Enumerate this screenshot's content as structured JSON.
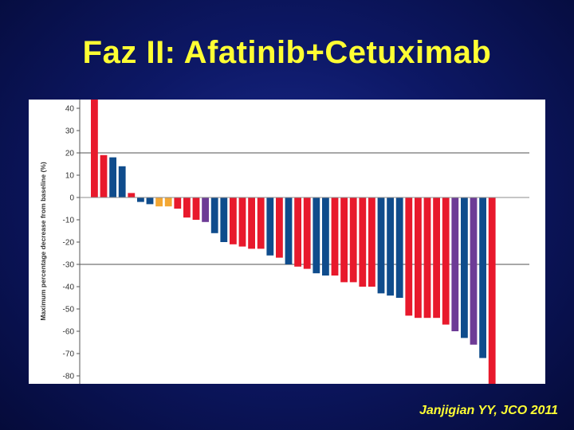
{
  "slide": {
    "title": "Faz II: Afatinib+Cetuximab",
    "citation": "Janjigian YY, JCO 2011"
  },
  "colors": {
    "red": "#e8192c",
    "blue": "#0f4c8c",
    "orange": "#f3a733",
    "purple": "#6d3b96",
    "reference_line": "#8c8c8c"
  },
  "chart_data": {
    "type": "bar",
    "title": "",
    "ylabel": "Maximum percentage decrease from baseline (%)",
    "xlabel": "",
    "ylim": [
      -85,
      45
    ],
    "yticks": [
      40,
      30,
      20,
      10,
      0,
      -10,
      -20,
      -30,
      -40,
      -50,
      -60,
      -70,
      -80
    ],
    "reference_lines": [
      20,
      -30
    ],
    "grid": false,
    "legend": "none",
    "series": [
      {
        "values": [
          45,
          19,
          18,
          14,
          2,
          -2,
          -3,
          -4,
          -4,
          -5,
          -9,
          -10,
          -11,
          -16,
          -20,
          -21,
          -22,
          -23,
          -23,
          -26,
          -27,
          -30,
          -31,
          -32,
          -34,
          -35,
          -35,
          -38,
          -38,
          -40,
          -40,
          -43,
          -44,
          -45,
          -53,
          -54,
          -54,
          -54,
          -57,
          -60,
          -63,
          -66,
          -72,
          -85
        ],
        "colors": [
          "red",
          "red",
          "blue",
          "blue",
          "red",
          "blue",
          "blue",
          "orange",
          "orange",
          "red",
          "red",
          "red",
          "purple",
          "blue",
          "blue",
          "red",
          "red",
          "red",
          "red",
          "blue",
          "red",
          "blue",
          "red",
          "red",
          "blue",
          "blue",
          "red",
          "red",
          "red",
          "red",
          "red",
          "blue",
          "blue",
          "blue",
          "red",
          "red",
          "red",
          "red",
          "red",
          "purple",
          "blue",
          "purple",
          "blue",
          "red"
        ]
      }
    ]
  }
}
